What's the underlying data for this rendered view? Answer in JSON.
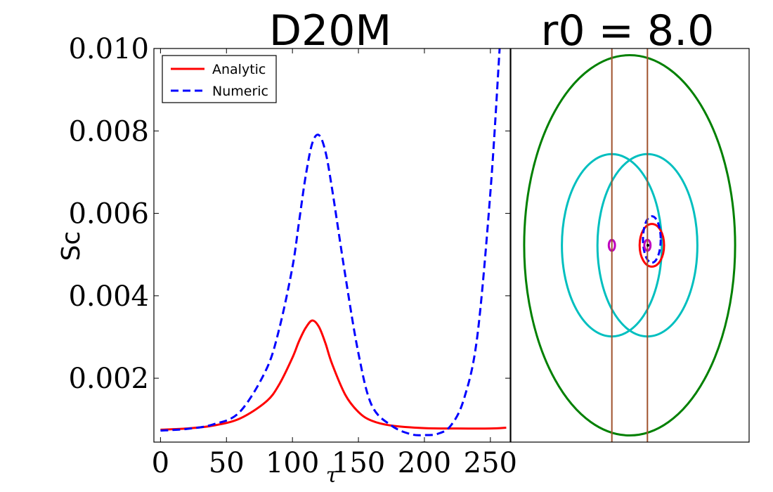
{
  "chart_data": [
    {
      "type": "line",
      "title": "D20M",
      "xlabel": "τ",
      "ylabel": "Sc",
      "xlim": [
        -5,
        265
      ],
      "ylim": [
        0.00045,
        0.01
      ],
      "xticks": [
        0,
        50,
        100,
        150,
        200,
        250
      ],
      "xtick_labels": [
        "0",
        "50",
        "100",
        "150",
        "200",
        "250"
      ],
      "yticks": [
        0.002,
        0.004,
        0.006,
        0.008,
        0.01
      ],
      "ytick_labels": [
        "0.002",
        "0.004",
        "0.006",
        "0.008",
        "0.010"
      ],
      "legend_position": "top-left",
      "series": [
        {
          "name": "Analytic",
          "color": "#ff0000",
          "style": "solid",
          "x": [
            0,
            20,
            40,
            60,
            80,
            90,
            100,
            105,
            110,
            115,
            120,
            125,
            130,
            140,
            150,
            160,
            175,
            200,
            225,
            250,
            262
          ],
          "y": [
            0.00075,
            0.00078,
            0.00085,
            0.00102,
            0.00143,
            0.00185,
            0.0025,
            0.0029,
            0.00322,
            0.0034,
            0.00325,
            0.00285,
            0.00235,
            0.0016,
            0.00118,
            0.00097,
            0.00085,
            0.00079,
            0.00078,
            0.00078,
            0.0008
          ]
        },
        {
          "name": "Numeric",
          "color": "#0000ff",
          "style": "dashed",
          "x": [
            0,
            20,
            40,
            60,
            80,
            90,
            100,
            105,
            110,
            115,
            120,
            125,
            130,
            140,
            150,
            160,
            175,
            190,
            200,
            210,
            220,
            230,
            240,
            250,
            257
          ],
          "y": [
            0.00073,
            0.00077,
            0.00088,
            0.00118,
            0.0022,
            0.0032,
            0.0047,
            0.0058,
            0.0069,
            0.0077,
            0.0079,
            0.0075,
            0.0066,
            0.0045,
            0.0026,
            0.00135,
            0.00085,
            0.00064,
            0.00062,
            0.00065,
            0.00085,
            0.0015,
            0.003,
            0.0065,
            0.01
          ]
        }
      ]
    },
    {
      "type": "scatter",
      "title": "r0 = 8.0",
      "xlim": [
        -11,
        11
      ],
      "ylim": [
        -10,
        10
      ],
      "axis_ticks": "none",
      "shapes": [
        {
          "kind": "ellipse",
          "name": "green-ellipse",
          "cx": 0,
          "cy": 0,
          "rx": 9.5,
          "ry": 9.8,
          "color": "#008000"
        },
        {
          "kind": "ellipse",
          "name": "cyan-ellipse-left",
          "cx": -1.6,
          "cy": 0,
          "rx": 4.5,
          "ry": 4.7,
          "color": "#00bfbf"
        },
        {
          "kind": "ellipse",
          "name": "cyan-ellipse-right",
          "cx": 1.6,
          "cy": 0,
          "rx": 4.5,
          "ry": 4.7,
          "color": "#00bfbf"
        },
        {
          "kind": "ellipse",
          "name": "red-ellipse",
          "cx": 2.0,
          "cy": 0,
          "rx": 1.1,
          "ry": 1.1,
          "color": "#ff0000"
        },
        {
          "kind": "ellipse",
          "name": "blue-dashed-ellipse",
          "cx": 2.0,
          "cy": 0.3,
          "rx": 0.8,
          "ry": 1.2,
          "color": "#0000ff",
          "dashed": true
        },
        {
          "kind": "ellipse",
          "name": "magenta-ellipse-left",
          "cx": -1.6,
          "cy": 0,
          "rx": 0.28,
          "ry": 0.28,
          "color": "#bf00bf"
        },
        {
          "kind": "ellipse",
          "name": "magenta-ellipse-right",
          "cx": 1.6,
          "cy": 0,
          "rx": 0.28,
          "ry": 0.28,
          "color": "#bf00bf"
        },
        {
          "kind": "vline",
          "name": "brown-line-left",
          "x": -1.6,
          "color": "#a0522d"
        },
        {
          "kind": "vline",
          "name": "brown-line-right",
          "x": 1.6,
          "color": "#a0522d"
        }
      ]
    }
  ]
}
